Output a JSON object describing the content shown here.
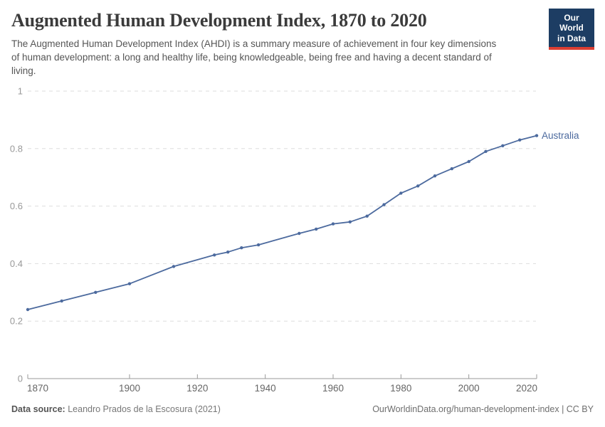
{
  "header": {
    "title": "Augmented Human Development Index, 1870 to 2020",
    "subtitle": "The Augmented Human Development Index (AHDI) is a summary measure of achievement in four key dimensions of human development: a long and healthy life, being knowledgeable, being free and having a decent standard of living.",
    "logo": {
      "line1": "Our World",
      "line2": "in Data",
      "bg_color": "#1d3d63",
      "stripe_color": "#dc3e32"
    }
  },
  "chart_data": {
    "type": "line",
    "title": "Augmented Human Development Index, 1870 to 2020",
    "xlabel": "",
    "ylabel": "",
    "xlim": [
      1870,
      2020
    ],
    "ylim": [
      0,
      1
    ],
    "x_ticks": [
      1870,
      1900,
      1920,
      1940,
      1960,
      1980,
      2000,
      2020
    ],
    "y_ticks": [
      0,
      0.2,
      0.4,
      0.6,
      0.8,
      1
    ],
    "grid": "horizontal-dashed",
    "legend_position": "end-of-line-label",
    "series": [
      {
        "name": "Australia",
        "color": "#4C6A9E",
        "x": [
          1870,
          1880,
          1890,
          1900,
          1913,
          1925,
          1929,
          1933,
          1938,
          1950,
          1955,
          1960,
          1965,
          1970,
          1975,
          1980,
          1985,
          1990,
          1995,
          2000,
          2005,
          2010,
          2015,
          2020
        ],
        "values": [
          0.24,
          0.27,
          0.3,
          0.33,
          0.39,
          0.43,
          0.44,
          0.455,
          0.465,
          0.505,
          0.52,
          0.538,
          0.545,
          0.565,
          0.605,
          0.645,
          0.67,
          0.705,
          0.73,
          0.755,
          0.79,
          0.81,
          0.83,
          0.845
        ]
      }
    ]
  },
  "style": {
    "grid_color": "#dddddd",
    "axis_color": "#999999",
    "y_label_color": "#999999",
    "x_label_color": "#666666"
  },
  "footer": {
    "source_label": "Data source:",
    "source_value": " Leandro Prados de la Escosura (2021)",
    "right_text": "OurWorldinData.org/human-development-index | CC BY"
  }
}
